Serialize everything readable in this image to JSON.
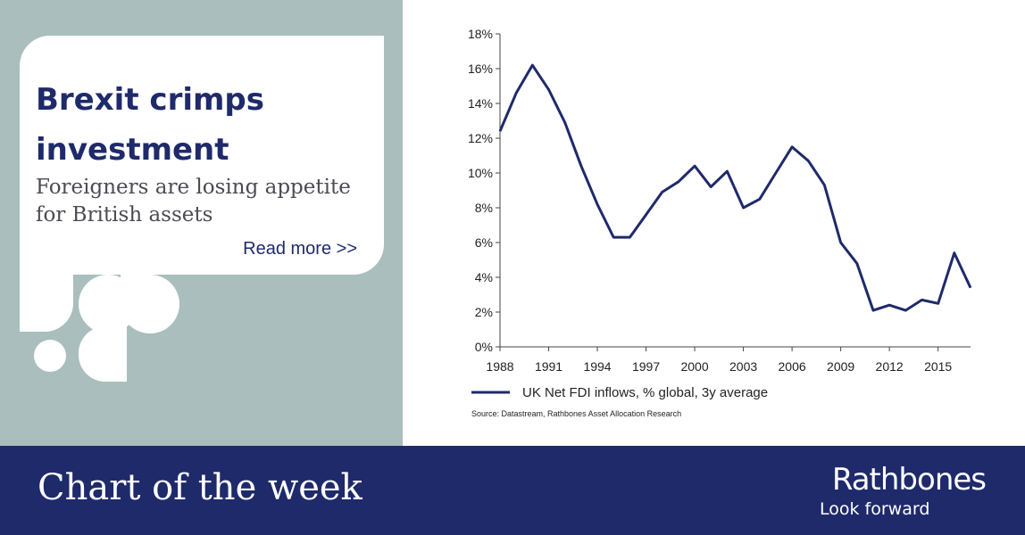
{
  "headline": {
    "title": "Brexit crimps investment",
    "subtitle": "Foreigners are losing appetite for British assets",
    "read_more": "Read more >>"
  },
  "footer": {
    "title": "Chart of the week",
    "brand": "Rathbones",
    "tagline": "Look forward"
  },
  "colors": {
    "navy": "#1f2a6b",
    "sage": "#a9bebd",
    "series_line": "#1f2a6b"
  },
  "chart_data": {
    "type": "line",
    "title": "",
    "xlabel": "",
    "ylabel": "",
    "xlim": [
      1988,
      2017
    ],
    "ylim": [
      0,
      18
    ],
    "y_ticks": [
      0,
      2,
      4,
      6,
      8,
      10,
      12,
      14,
      16,
      18
    ],
    "y_tick_labels": [
      "0%",
      "2%",
      "4%",
      "6%",
      "8%",
      "10%",
      "12%",
      "14%",
      "16%",
      "18%"
    ],
    "x_ticks": [
      1988,
      1991,
      1994,
      1997,
      2000,
      2003,
      2006,
      2009,
      2012,
      2015
    ],
    "x_tick_labels": [
      "1988",
      "1991",
      "1994",
      "1997",
      "2000",
      "2003",
      "2006",
      "2009",
      "2012",
      "2015"
    ],
    "grid": false,
    "legend_position": "bottom-left",
    "series": [
      {
        "name": "UK Net FDI inflows, % global, 3y average",
        "color": "#1f2a6b",
        "x": [
          1988,
          1989,
          1990,
          1991,
          1992,
          1993,
          1994,
          1995,
          1996,
          1997,
          1998,
          1999,
          2000,
          2001,
          2002,
          2003,
          2004,
          2005,
          2006,
          2007,
          2008,
          2009,
          2010,
          2011,
          2012,
          2013,
          2014,
          2015,
          2016,
          2017
        ],
        "y": [
          12.4,
          14.6,
          16.2,
          14.8,
          12.9,
          10.4,
          8.2,
          6.3,
          6.3,
          7.6,
          8.9,
          9.5,
          10.4,
          9.2,
          10.1,
          8.0,
          8.5,
          10.0,
          11.5,
          10.7,
          9.3,
          6.0,
          4.8,
          2.1,
          2.4,
          2.1,
          2.7,
          2.5,
          5.4,
          3.4
        ]
      }
    ],
    "source": "Source: Datastream, Rathbones Asset Allocation Research"
  }
}
